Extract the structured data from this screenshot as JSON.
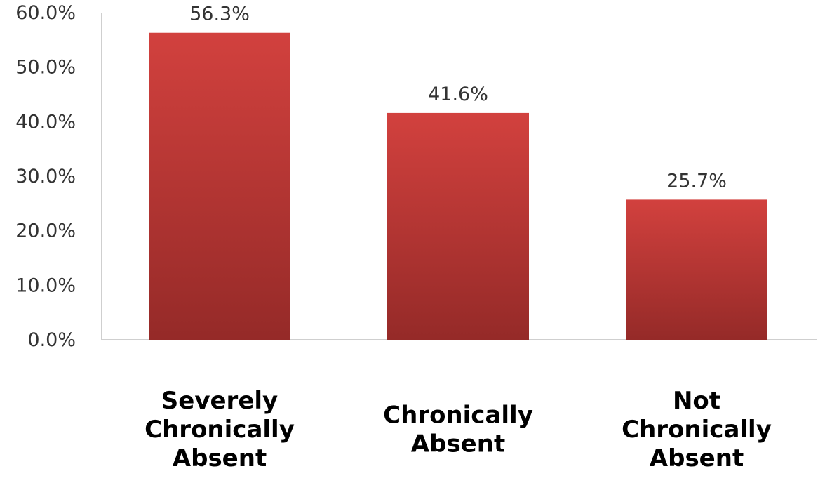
{
  "chart_data": {
    "type": "bar",
    "categories": [
      [
        "Severely",
        "Chronically",
        "Absent"
      ],
      [
        "Chronically",
        "Absent"
      ],
      [
        "Not",
        "Chronically",
        "Absent"
      ]
    ],
    "values": [
      56.3,
      41.6,
      25.7
    ],
    "data_labels": [
      "56.3%",
      "41.6%",
      "25.7%"
    ],
    "y_ticks": [
      "0.0%",
      "10.0%",
      "20.0%",
      "30.0%",
      "40.0%",
      "50.0%",
      "60.0%"
    ],
    "ylim": [
      0,
      60
    ],
    "grid": false,
    "legend": "none",
    "colors": {
      "bar_top": "#d2413e",
      "bar_bottom": "#952a28",
      "axis": "#bfbfbf"
    }
  }
}
